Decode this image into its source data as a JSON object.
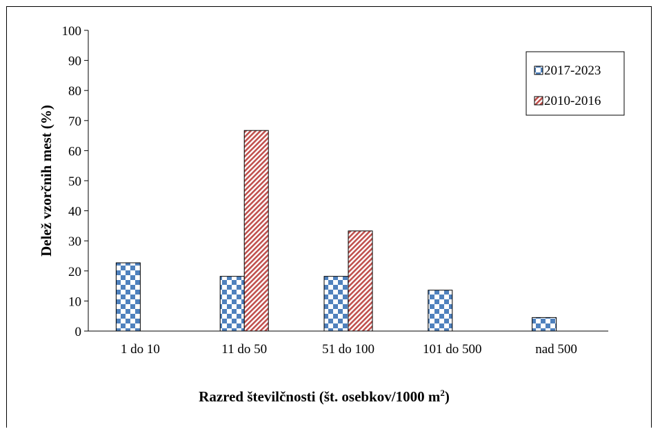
{
  "chart_data": {
    "type": "bar",
    "categories": [
      "1 do 10",
      "11 do 50",
      "51 do 100",
      "101 do 500",
      "nad 500"
    ],
    "series": [
      {
        "name": "2017-2023",
        "values": [
          22.7,
          18.2,
          18.2,
          13.6,
          4.5
        ],
        "color": "#4f81bd",
        "pattern": "checkerboard"
      },
      {
        "name": "2010-2016",
        "values": [
          null,
          66.7,
          33.3,
          null,
          null
        ],
        "color": "#c0504d",
        "pattern": "diagonal-stripes"
      }
    ],
    "xlabel_main": "Razred številčnosti (št. osebkov/1000 m",
    "xlabel_sup": "2",
    "xlabel_end": ")",
    "ylabel": "Delež vzorčnih mest (%)",
    "ylim": [
      0,
      100
    ],
    "yticks": [
      "0",
      "10",
      "20",
      "30",
      "40",
      "50",
      "60",
      "70",
      "80",
      "90",
      "100"
    ],
    "legend_position": "top-right",
    "grid": false
  }
}
